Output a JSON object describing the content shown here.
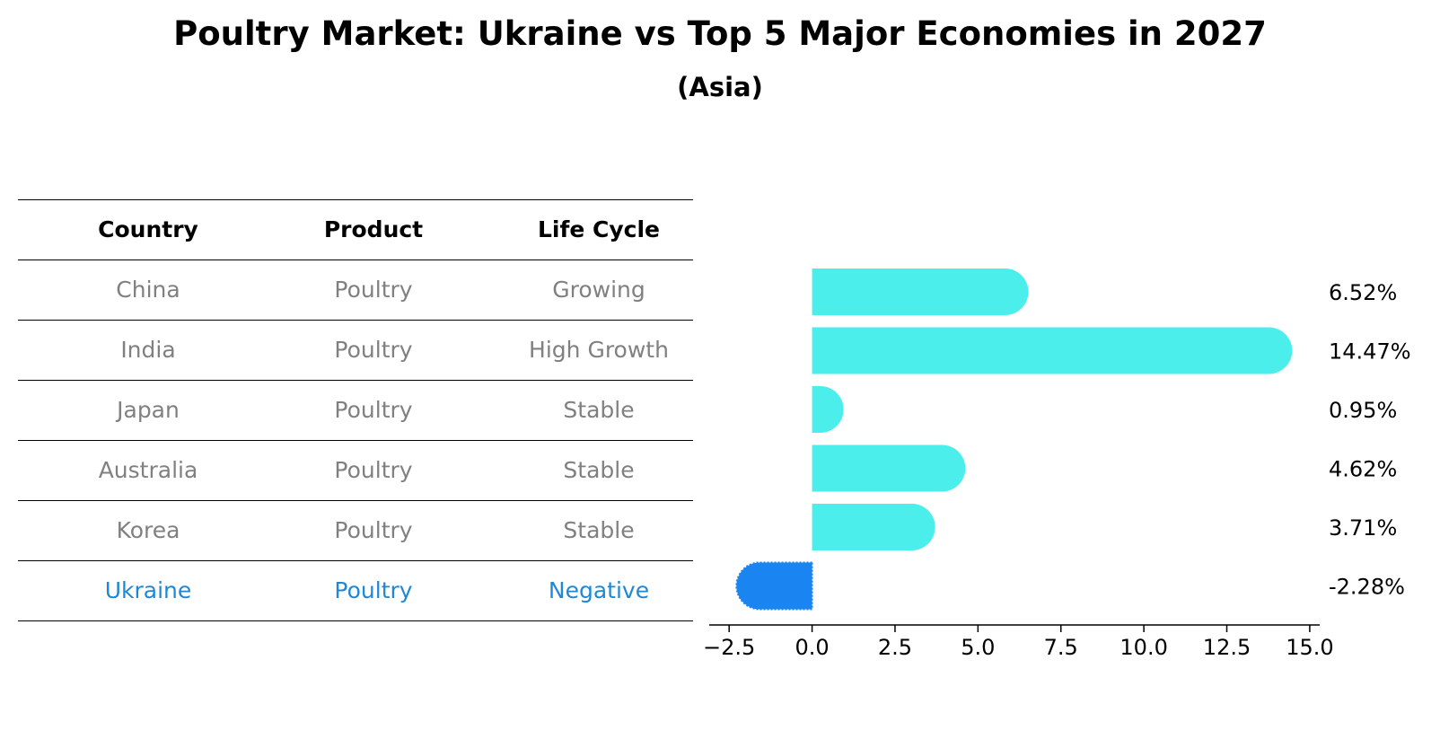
{
  "header": {
    "title": "Poultry Market: Ukraine vs Top 5 Major Economies in 2027",
    "subtitle": "(Asia)"
  },
  "table": {
    "columns": [
      "Country",
      "Product",
      "Life Cycle"
    ],
    "rows": [
      {
        "country": "China",
        "product": "Poultry",
        "life_cycle": "Growing"
      },
      {
        "country": "India",
        "product": "Poultry",
        "life_cycle": "High Growth"
      },
      {
        "country": "Japan",
        "product": "Poultry",
        "life_cycle": "Stable"
      },
      {
        "country": "Australia",
        "product": "Poultry",
        "life_cycle": "Stable"
      },
      {
        "country": "Korea",
        "product": "Poultry",
        "life_cycle": "Stable"
      },
      {
        "country": "Ukraine",
        "product": "Poultry",
        "life_cycle": "Negative"
      }
    ]
  },
  "colors": {
    "bar": "#4beeeb",
    "highlight_bar": "#1a85f0",
    "highlight_text": "#1f88d6",
    "muted_text": "#808080"
  },
  "chart_data": {
    "type": "bar",
    "orientation": "horizontal",
    "categories": [
      "China",
      "India",
      "Japan",
      "Australia",
      "Korea",
      "Ukraine"
    ],
    "values": [
      6.52,
      14.47,
      0.95,
      4.62,
      3.71,
      -2.28
    ],
    "value_labels": [
      "6.52%",
      "14.47%",
      "0.95%",
      "4.62%",
      "3.71%",
      "-2.28%"
    ],
    "highlight": "Ukraine",
    "xlim": [
      -3.1,
      15.3
    ],
    "xticks": [
      -2.5,
      0.0,
      2.5,
      5.0,
      7.5,
      10.0,
      12.5,
      15.0
    ],
    "xtick_labels": [
      "−2.5",
      "0.0",
      "2.5",
      "5.0",
      "7.5",
      "10.0",
      "12.5",
      "15.0"
    ],
    "title": "Poultry Market: Ukraine vs Top 5 Major Economies in 2027",
    "subtitle": "(Asia)",
    "xlabel": "",
    "ylabel": ""
  }
}
